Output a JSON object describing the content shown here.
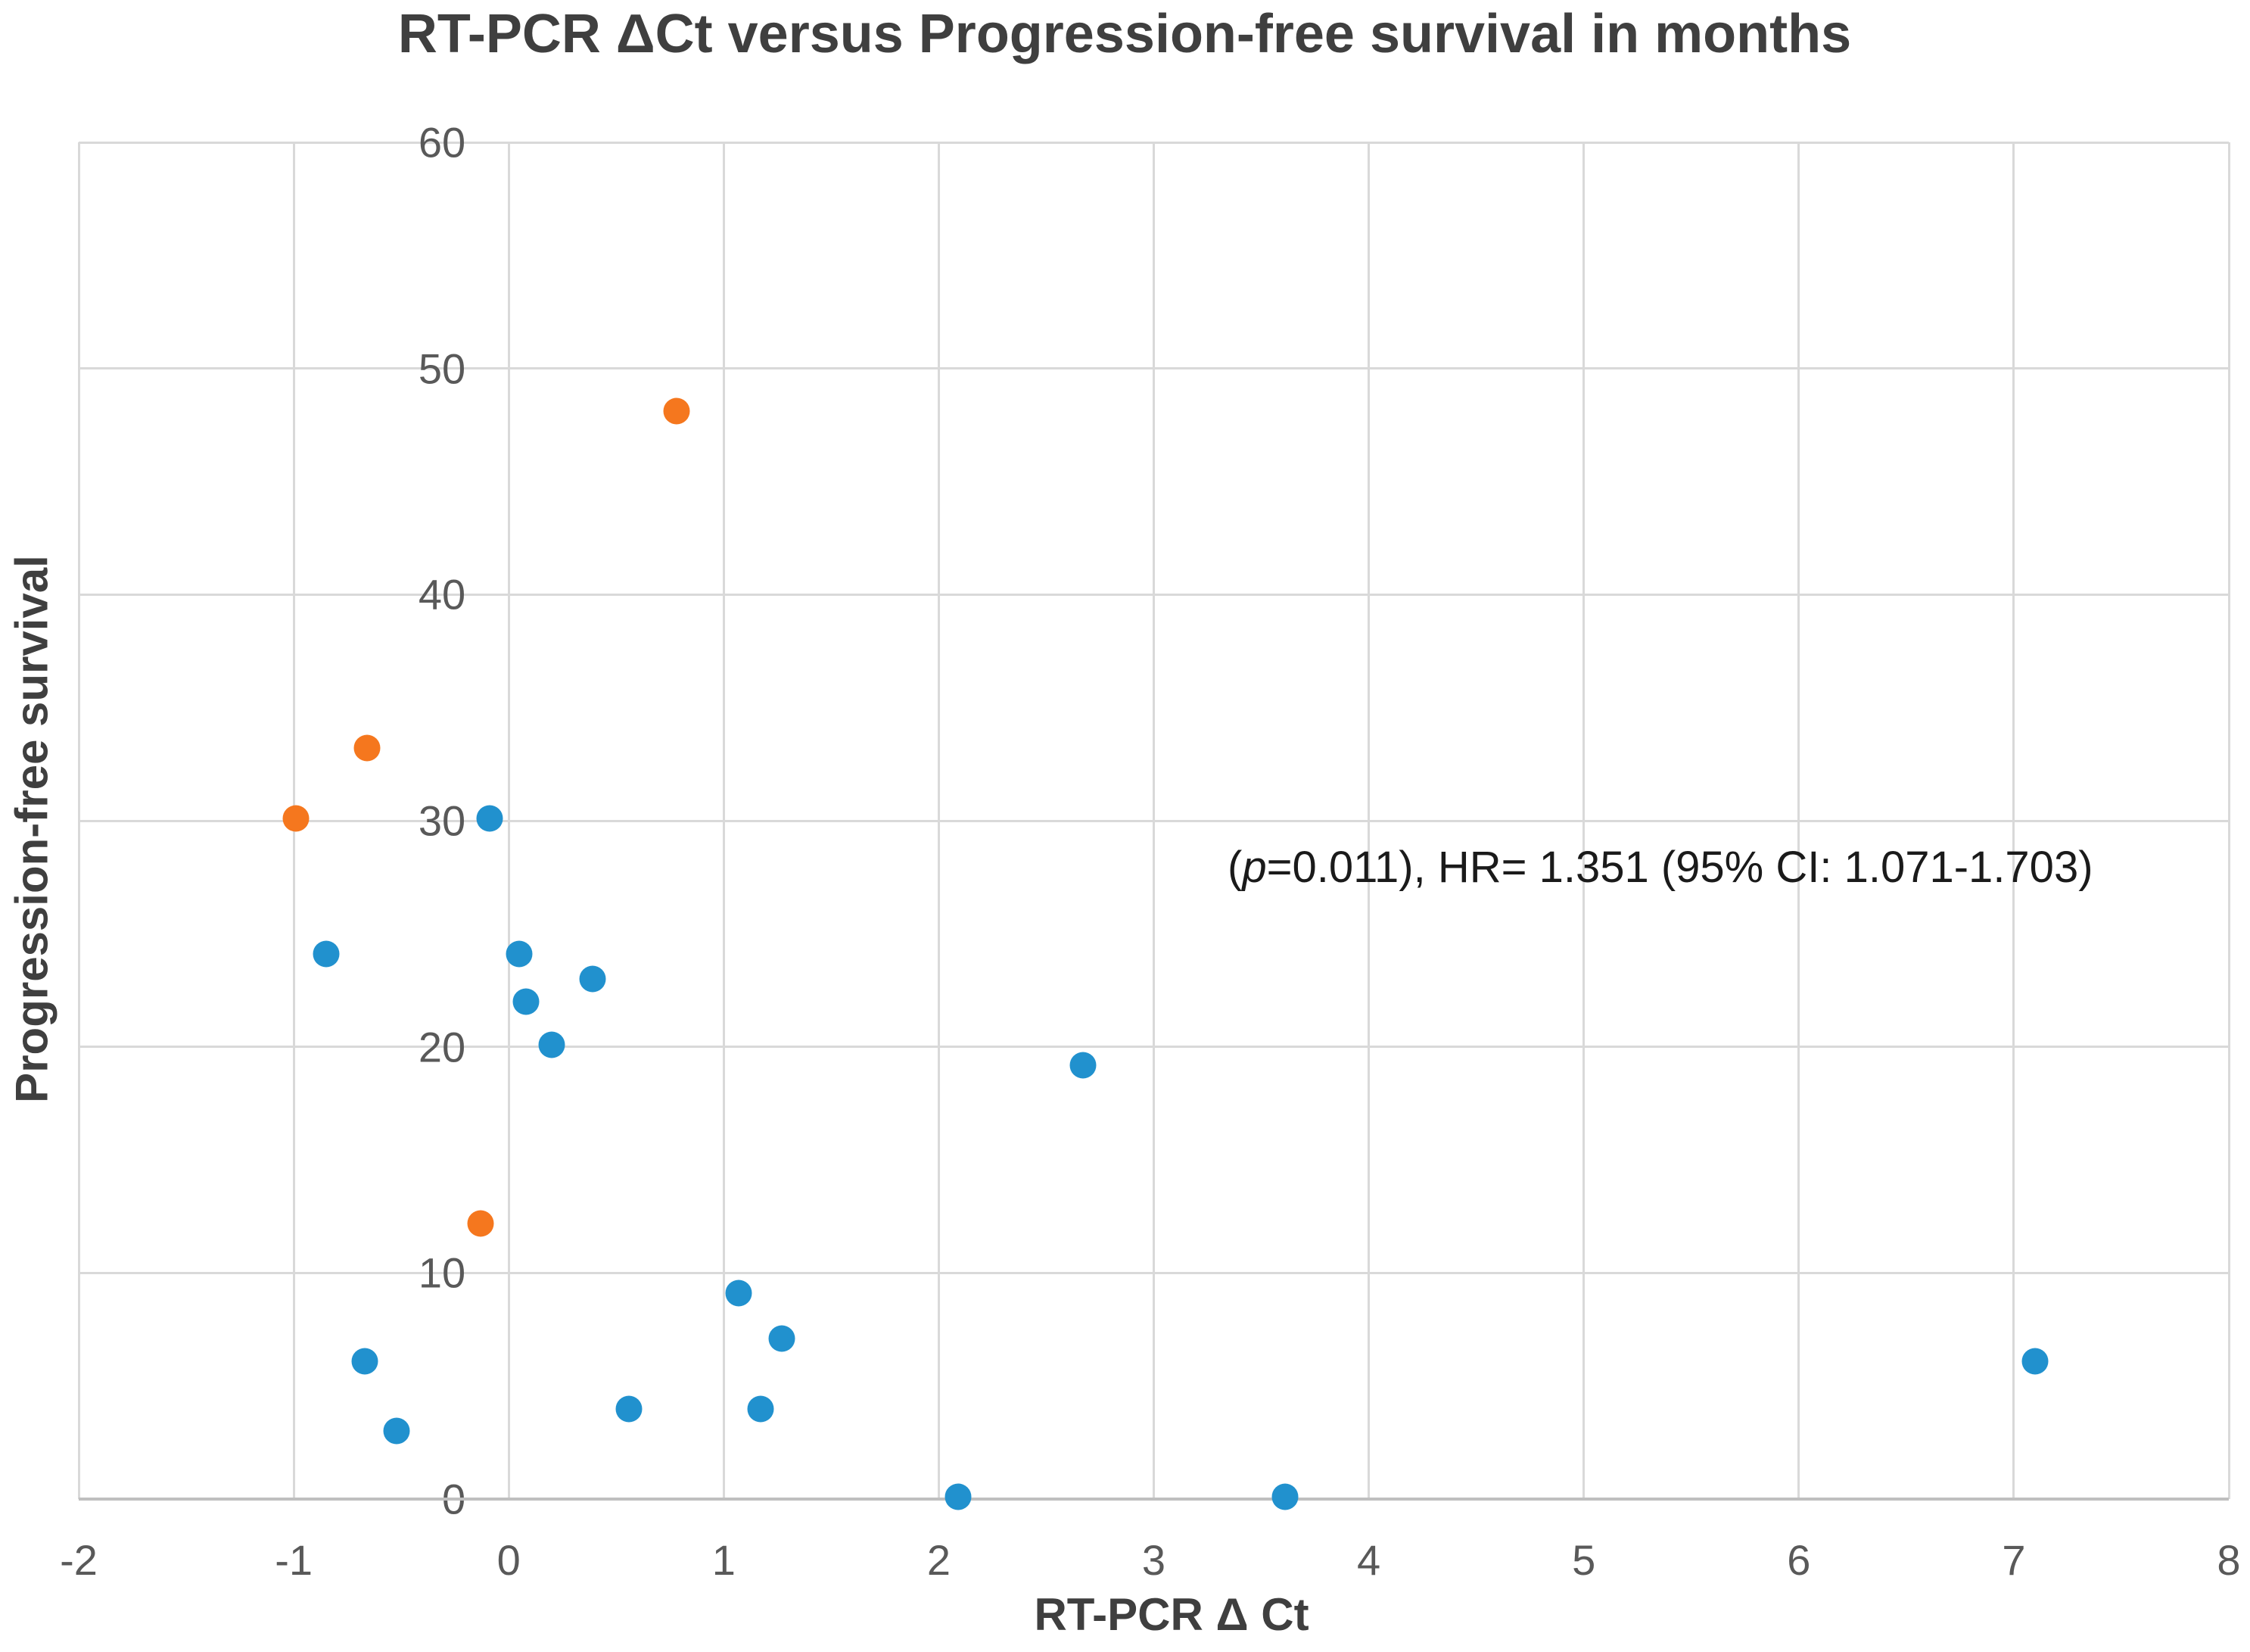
{
  "chart": {
    "title": "RT-PCR ΔCt versus Progression-free survival in months",
    "annotation": {
      "open": "(",
      "italic_var": "p",
      "rest": "=0.011), HR= 1.351 (95% CI: 1.071-1.703)"
    },
    "x_axis": {
      "title": "RT-PCR Δ Ct",
      "ticks": [
        -2,
        -1,
        0,
        1,
        2,
        3,
        4,
        5,
        6,
        7,
        8
      ]
    },
    "y_axis": {
      "title": "Progression-free survival",
      "ticks": [
        0,
        10,
        20,
        30,
        40,
        50,
        60
      ]
    },
    "colors": {
      "series_blue": "#2191ce",
      "series_orange": "#f5771e",
      "gridline": "#d9d9d9",
      "axis_line": "#bfbfbf",
      "title_text": "#3f3f3f",
      "tick_text": "#595959",
      "annotation_text": "#1a1a1a"
    }
  },
  "chart_data": {
    "type": "scatter",
    "title": "RT-PCR ΔCt versus Progression-free survival in months",
    "xlabel": "RT-PCR Δ Ct",
    "ylabel": "Progression-free survival",
    "xlim": [
      -2,
      8
    ],
    "ylim": [
      0,
      60
    ],
    "x_ticks": [
      -2,
      -1,
      0,
      1,
      2,
      3,
      4,
      5,
      6,
      7,
      8
    ],
    "y_ticks": [
      0,
      10,
      20,
      30,
      40,
      50,
      60
    ],
    "grid": true,
    "legend": "none",
    "annotation": "(p=0.011), HR= 1.351 (95% CI: 1.071-1.703)",
    "series": [
      {
        "name": "blue",
        "color": "#2191ce",
        "points": [
          [
            -0.85,
            24.1
          ],
          [
            -0.67,
            6.1
          ],
          [
            -0.52,
            3.0
          ],
          [
            -0.09,
            30.1
          ],
          [
            0.05,
            24.1
          ],
          [
            0.08,
            22.0
          ],
          [
            0.2,
            20.1
          ],
          [
            0.39,
            23.0
          ],
          [
            0.56,
            4.0
          ],
          [
            1.07,
            9.1
          ],
          [
            1.17,
            4.0
          ],
          [
            1.27,
            7.1
          ],
          [
            2.09,
            0.1
          ],
          [
            2.67,
            19.2
          ],
          [
            3.61,
            0.1
          ],
          [
            7.1,
            6.1
          ]
        ]
      },
      {
        "name": "orange",
        "color": "#f5771e",
        "points": [
          [
            -0.99,
            30.1
          ],
          [
            -0.66,
            33.2
          ],
          [
            -0.13,
            12.2
          ],
          [
            0.78,
            48.1
          ]
        ]
      }
    ]
  }
}
